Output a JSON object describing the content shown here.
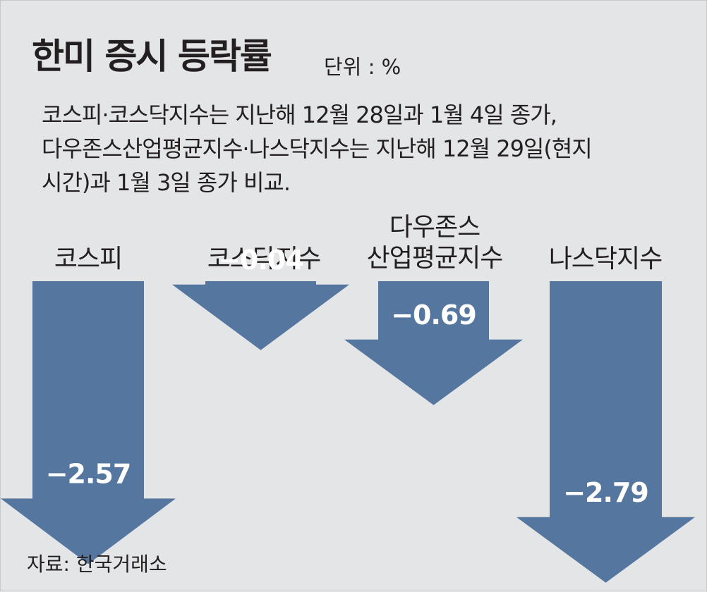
{
  "title": "한미 증시 등락률",
  "unit": "단위 : %",
  "note_lines": [
    "코스피·코스닥지수는 지난해 12월 28일과 1월 4일 종가,",
    "다우존스산업평균지수·나스닥지수는 지난해 12월 29일(현지",
    "시간)과 1월 3일 종가 비교."
  ],
  "source": "자료: 한국거래소",
  "colors": {
    "arrow": "#54769f",
    "background": "#e4e5e6",
    "text": "#231f20",
    "value_text": "#ffffff"
  },
  "chart_data": {
    "type": "bar",
    "orientation": "downward-arrows",
    "categories": [
      "코스피",
      "코스닥지수",
      "다우존스\n산업평균지수",
      "나스닥지수"
    ],
    "values": [
      -2.57,
      -0.04,
      -0.69,
      -2.79
    ],
    "value_labels": [
      "−2.57",
      "−0.04",
      "−0.69",
      "−2.79"
    ],
    "ylabel": "",
    "xlabel": ""
  }
}
